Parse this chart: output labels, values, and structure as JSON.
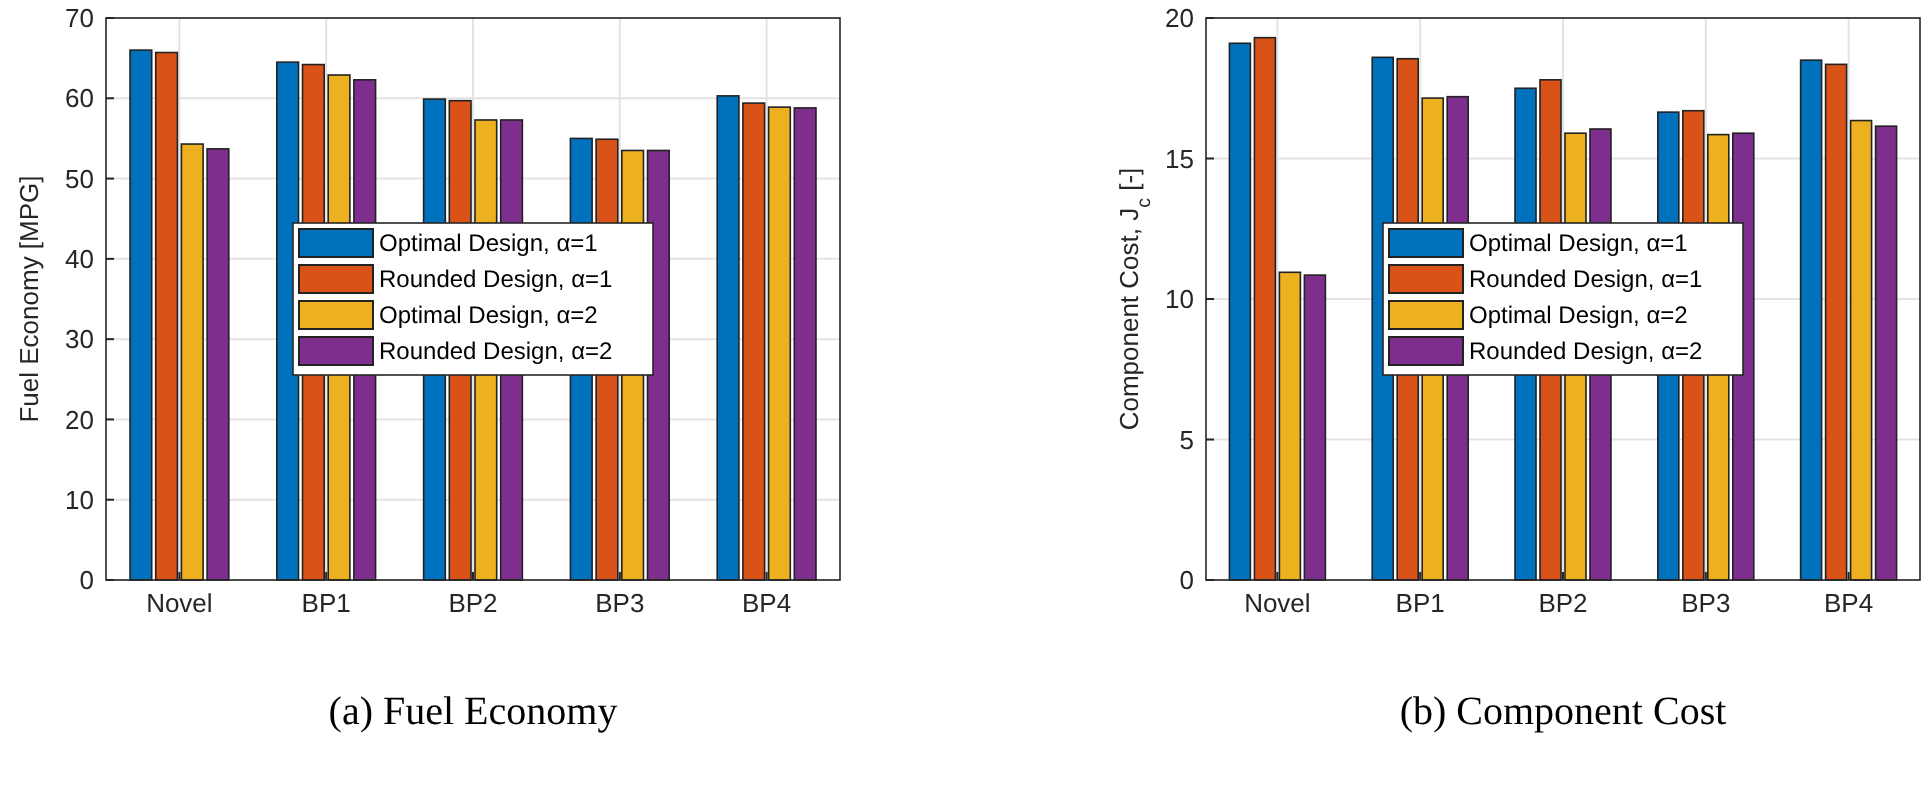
{
  "chart_data": [
    {
      "type": "bar",
      "title": "(a) Fuel Economy",
      "ylabel": "Fuel Economy [MPG]",
      "categories": [
        "Novel",
        "BP1",
        "BP2",
        "BP3",
        "BP4"
      ],
      "series": [
        {
          "name": "Optimal Design, α=1",
          "color": "#0072bd",
          "values": [
            66.0,
            64.5,
            59.9,
            55.0,
            60.3
          ]
        },
        {
          "name": "Rounded Design, α=1",
          "color": "#d95319",
          "values": [
            65.7,
            64.2,
            59.7,
            54.9,
            59.4
          ]
        },
        {
          "name": "Optimal Design, α=2",
          "color": "#edb120",
          "values": [
            54.3,
            62.9,
            57.3,
            53.5,
            58.9
          ]
        },
        {
          "name": "Rounded Design, α=2",
          "color": "#7e2f8e",
          "values": [
            53.7,
            62.3,
            57.3,
            53.5,
            58.8
          ]
        }
      ],
      "ylim": [
        0,
        70
      ],
      "yticks": [
        0,
        10,
        20,
        30,
        40,
        50,
        60,
        70
      ],
      "grid": true,
      "legend": "center"
    },
    {
      "type": "bar",
      "title": "(b) Component Cost",
      "ylabel": "Component Cost, J$_{c}$ [-]",
      "categories": [
        "Novel",
        "BP1",
        "BP2",
        "BP3",
        "BP4"
      ],
      "series": [
        {
          "name": "Optimal Design, α=1",
          "color": "#0072bd",
          "values": [
            19.1,
            18.6,
            17.5,
            16.65,
            18.5
          ]
        },
        {
          "name": "Rounded Design, α=1",
          "color": "#d95319",
          "values": [
            19.3,
            18.55,
            17.8,
            16.7,
            18.35
          ]
        },
        {
          "name": "Optimal Design, α=2",
          "color": "#edb120",
          "values": [
            10.95,
            17.15,
            15.9,
            15.85,
            16.35
          ]
        },
        {
          "name": "Rounded Design, α=2",
          "color": "#7e2f8e",
          "values": [
            10.85,
            17.2,
            16.05,
            15.9,
            16.15
          ]
        }
      ],
      "ylim": [
        0,
        20
      ],
      "yticks": [
        0,
        5,
        10,
        15,
        20
      ],
      "grid": true,
      "legend": "center"
    }
  ]
}
